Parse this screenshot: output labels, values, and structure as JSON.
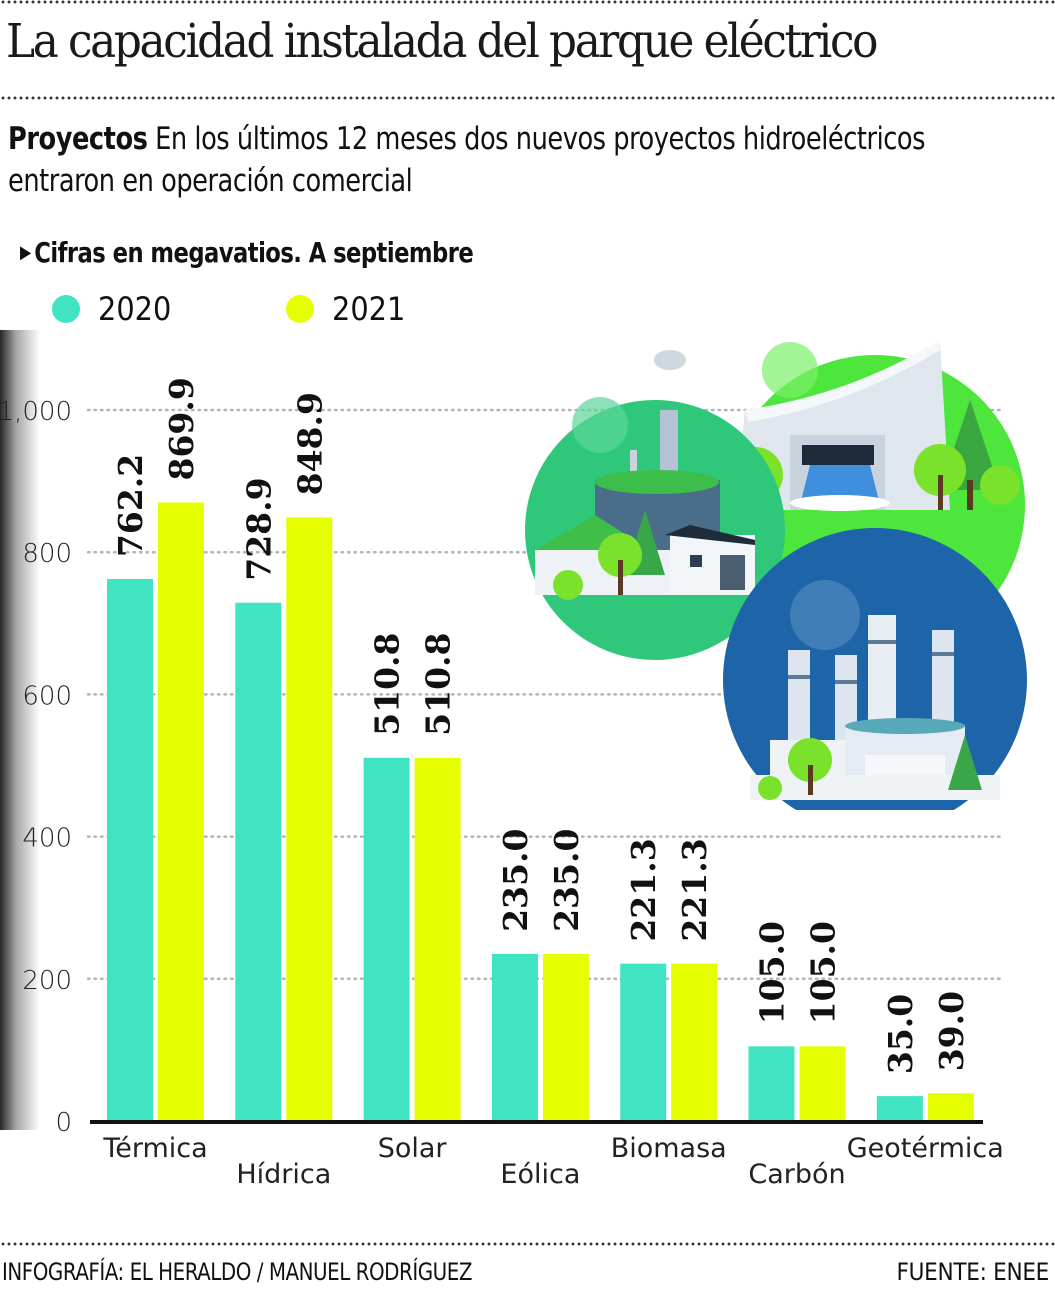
{
  "header": {
    "title": "La capacidad instalada del parque eléctrico",
    "subtitle_bold": "Proyectos",
    "subtitle_rest": " En los últimos 12 meses dos  nuevos proyectos hidroeléctricos entraron en operación comercial",
    "note": "Cifras en megavatios. A septiembre"
  },
  "colors": {
    "s2020": "#40e3c2",
    "s2021": "#e5ff00",
    "axis": "#111111",
    "grid": "#b5b5b5"
  },
  "chart_data": {
    "type": "bar",
    "title": "La capacidad instalada del parque eléctrico",
    "xlabel": "",
    "ylabel": "Megavatios",
    "categories": [
      "Térmica",
      "Hídrica",
      "Solar",
      "Eólica",
      "Biomasa",
      "Carbón",
      "Geotérmica"
    ],
    "series": [
      {
        "name": "2020",
        "values": [
          762.2,
          728.9,
          510.8,
          235.0,
          221.3,
          105.0,
          35.0
        ],
        "labels": [
          "762.2",
          "728.9",
          "510.8",
          "235.0",
          "221.3",
          "105.0",
          "35.0"
        ]
      },
      {
        "name": "2021",
        "values": [
          869.9,
          848.9,
          510.8,
          235.0,
          221.3,
          105.0,
          39.0
        ],
        "labels": [
          "869.9",
          "848.9",
          "510.8",
          "235.0",
          "221.3",
          "105.0",
          "39.0"
        ]
      }
    ],
    "yticks": [
      0,
      200,
      400,
      600,
      800,
      1000
    ],
    "ytick_labels": [
      "0",
      "200",
      "400",
      "600",
      "800",
      "1,000"
    ],
    "ylim": [
      0,
      1000
    ],
    "grid": true,
    "legend_position": "top-left"
  },
  "footer": {
    "credit": "INFOGRAFÍA: EL HERALDO / MANUEL RODRÍGUEZ",
    "source": "FUENTE: ENEE"
  },
  "illustrations": [
    "biogas-plant-icon",
    "hydroelectric-dam-icon",
    "thermal-power-plant-icon"
  ]
}
